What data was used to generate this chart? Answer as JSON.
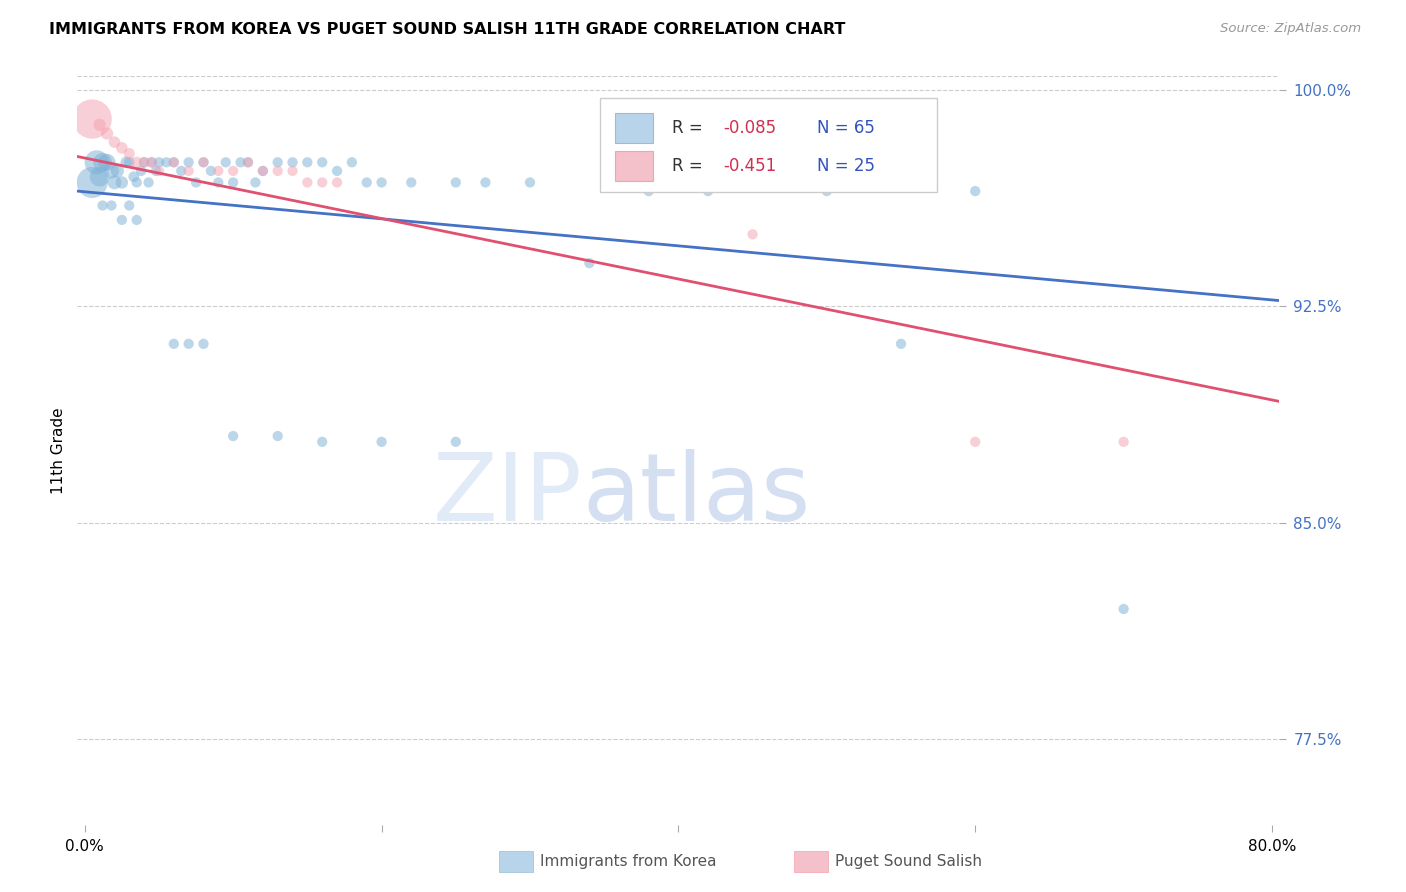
{
  "title": "IMMIGRANTS FROM KOREA VS PUGET SOUND SALISH 11TH GRADE CORRELATION CHART",
  "source": "Source: ZipAtlas.com",
  "ylabel": "11th Grade",
  "ymin": 0.745,
  "ymax": 1.005,
  "xmin": -0.005,
  "xmax": 0.805,
  "blue_color": "#7bafd4",
  "pink_color": "#f4a0b0",
  "blue_line_color": "#4472c4",
  "pink_line_color": "#e05070",
  "blue_R": -0.085,
  "blue_N": 65,
  "pink_R": -0.451,
  "pink_N": 25,
  "ytick_vals": [
    0.775,
    0.85,
    0.925,
    1.0
  ],
  "ytick_labels": [
    "77.5%",
    "85.0%",
    "92.5%",
    "100.0%"
  ],
  "watermark_text": "ZIPatlas",
  "blue_line_y0": 0.965,
  "blue_line_y1": 0.927,
  "pink_line_y0": 0.977,
  "pink_line_y1": 0.892,
  "blue_x": [
    0.005,
    0.008,
    0.01,
    0.012,
    0.015,
    0.018,
    0.02,
    0.022,
    0.025,
    0.028,
    0.03,
    0.033,
    0.035,
    0.038,
    0.04,
    0.043,
    0.045,
    0.048,
    0.05,
    0.055,
    0.06,
    0.065,
    0.07,
    0.075,
    0.08,
    0.085,
    0.09,
    0.095,
    0.1,
    0.105,
    0.11,
    0.115,
    0.12,
    0.13,
    0.14,
    0.15,
    0.16,
    0.17,
    0.18,
    0.19,
    0.2,
    0.22,
    0.25,
    0.27,
    0.3,
    0.34,
    0.38,
    0.42,
    0.5,
    0.55,
    0.6,
    0.7,
    0.1,
    0.13,
    0.16,
    0.2,
    0.25,
    0.06,
    0.07,
    0.08,
    0.012,
    0.018,
    0.025,
    0.03,
    0.035
  ],
  "blue_y": [
    0.968,
    0.975,
    0.97,
    0.975,
    0.975,
    0.972,
    0.968,
    0.972,
    0.968,
    0.975,
    0.975,
    0.97,
    0.968,
    0.972,
    0.975,
    0.968,
    0.975,
    0.972,
    0.975,
    0.975,
    0.975,
    0.972,
    0.975,
    0.968,
    0.975,
    0.972,
    0.968,
    0.975,
    0.968,
    0.975,
    0.975,
    0.968,
    0.972,
    0.975,
    0.975,
    0.975,
    0.975,
    0.972,
    0.975,
    0.968,
    0.968,
    0.968,
    0.968,
    0.968,
    0.968,
    0.94,
    0.965,
    0.965,
    0.965,
    0.912,
    0.965,
    0.82,
    0.88,
    0.88,
    0.878,
    0.878,
    0.878,
    0.912,
    0.912,
    0.912,
    0.96,
    0.96,
    0.955,
    0.96,
    0.955
  ],
  "blue_sizes": [
    500,
    300,
    200,
    180,
    150,
    120,
    100,
    90,
    80,
    70,
    60,
    60,
    55,
    55,
    55,
    55,
    55,
    55,
    55,
    55,
    55,
    55,
    55,
    55,
    55,
    55,
    55,
    55,
    55,
    55,
    55,
    55,
    55,
    55,
    55,
    55,
    55,
    55,
    55,
    55,
    55,
    55,
    55,
    55,
    55,
    55,
    55,
    55,
    55,
    55,
    55,
    55,
    55,
    55,
    55,
    55,
    55,
    55,
    55,
    55,
    55,
    55,
    55,
    55,
    55
  ],
  "pink_x": [
    0.005,
    0.01,
    0.015,
    0.02,
    0.025,
    0.03,
    0.035,
    0.04,
    0.045,
    0.05,
    0.06,
    0.07,
    0.08,
    0.09,
    0.1,
    0.11,
    0.12,
    0.13,
    0.14,
    0.15,
    0.16,
    0.17,
    0.45,
    0.6,
    0.7
  ],
  "pink_y": [
    0.99,
    0.988,
    0.985,
    0.982,
    0.98,
    0.978,
    0.975,
    0.975,
    0.975,
    0.972,
    0.975,
    0.972,
    0.975,
    0.972,
    0.972,
    0.975,
    0.972,
    0.972,
    0.972,
    0.968,
    0.968,
    0.968,
    0.95,
    0.878,
    0.878
  ],
  "pink_sizes": [
    800,
    80,
    80,
    70,
    70,
    65,
    65,
    60,
    60,
    55,
    55,
    55,
    55,
    55,
    55,
    55,
    55,
    55,
    55,
    55,
    55,
    55,
    55,
    55,
    55
  ]
}
